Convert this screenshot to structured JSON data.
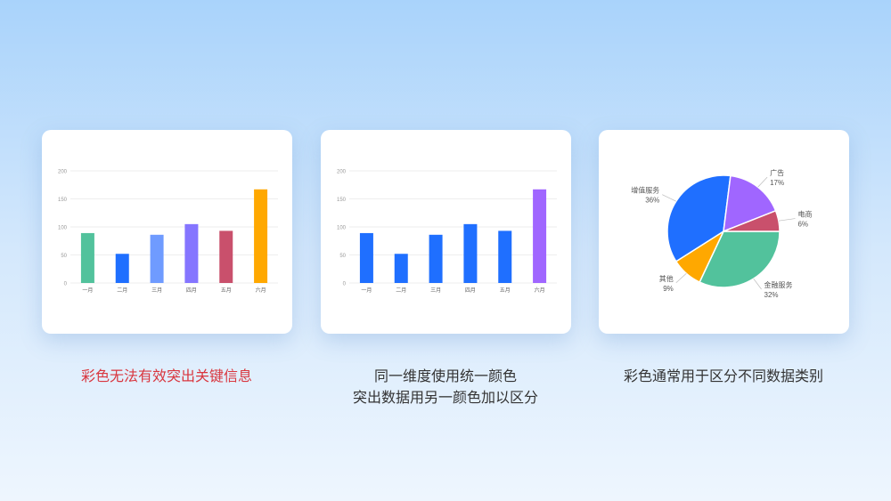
{
  "captions": {
    "c1": "彩色无法有效突出关键信息",
    "c2a": "同一维度使用统一颜色",
    "c2b": "突出数据用另一颜色加以区分",
    "c3": "彩色通常用于区分不同数据类别"
  },
  "colors": {
    "caption_warning": "#d9363e",
    "caption": "#333333"
  },
  "chart_data": [
    {
      "type": "bar",
      "categories": [
        "一月",
        "二月",
        "三月",
        "四月",
        "五月",
        "六月"
      ],
      "values": [
        89,
        52,
        86,
        105,
        93,
        167
      ],
      "ylim": [
        0,
        200
      ],
      "yticks": [
        0,
        50,
        100,
        150,
        200
      ],
      "grid": true,
      "colors": [
        "#52c29c",
        "#1f6fff",
        "#6f9bff",
        "#8575ff",
        "#c9506c",
        "#ffa800"
      ]
    },
    {
      "type": "bar",
      "categories": [
        "一月",
        "二月",
        "三月",
        "四月",
        "五月",
        "六月"
      ],
      "values": [
        89,
        52,
        86,
        105,
        93,
        167
      ],
      "ylim": [
        0,
        200
      ],
      "yticks": [
        0,
        50,
        100,
        150,
        200
      ],
      "grid": true,
      "colors": [
        "#1f6fff",
        "#1f6fff",
        "#1f6fff",
        "#1f6fff",
        "#1f6fff",
        "#a066ff"
      ]
    },
    {
      "type": "pie",
      "slices": [
        {
          "label": "金融服务",
          "value": 32,
          "pct": "32%",
          "color": "#52c29c"
        },
        {
          "label": "其他",
          "value": 9,
          "pct": "9%",
          "color": "#ffa800"
        },
        {
          "label": "增值服务",
          "value": 36,
          "pct": "36%",
          "color": "#1f6fff"
        },
        {
          "label": "广告",
          "value": 17,
          "pct": "17%",
          "color": "#a066ff"
        },
        {
          "label": "电商",
          "value": 6,
          "pct": "6%",
          "color": "#c9506c"
        }
      ]
    }
  ]
}
